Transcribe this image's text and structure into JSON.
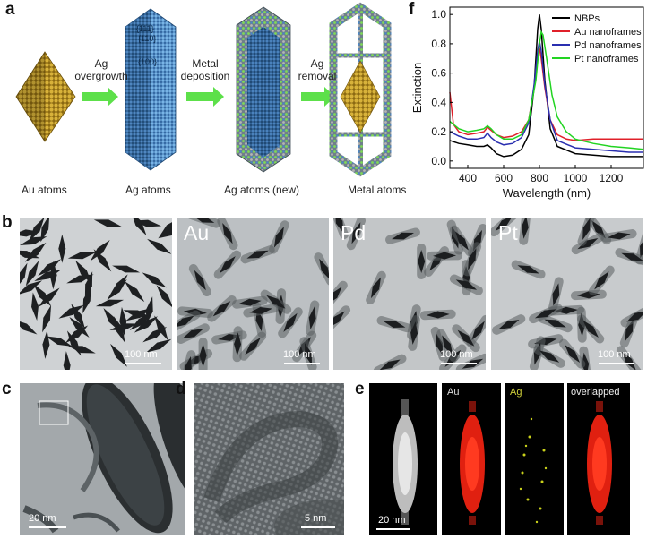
{
  "panels": {
    "a": "a",
    "b": "b",
    "c": "c",
    "d": "d",
    "e": "e",
    "f": "f"
  },
  "panel_a": {
    "steps": [
      "Ag overgrowth",
      "Metal deposition",
      "Ag removal"
    ],
    "facets": [
      "{111}",
      "{110}",
      "{100}"
    ],
    "legend": [
      "Au atoms",
      "Ag atoms",
      "Ag atoms (new)",
      "Metal atoms"
    ],
    "colors": {
      "au": "#c9a227",
      "ag": "#4a86c8",
      "ag_new": "#7ed957",
      "metal": "#9a9a9a",
      "arrow": "#5de04a"
    }
  },
  "panel_b": {
    "tiles": [
      "",
      "Au",
      "Pd",
      "Pt"
    ],
    "scale": "100 nm"
  },
  "panel_c": {
    "scale": "20 nm"
  },
  "panel_d": {
    "scale": "5 nm"
  },
  "panel_e": {
    "labels": [
      "",
      "Au",
      "Ag",
      "overlapped"
    ],
    "scale": "20 nm"
  },
  "chart_data": {
    "type": "line",
    "xlabel": "Wavelength (nm)",
    "ylabel": "Extinction",
    "xlim": [
      300,
      1380
    ],
    "ylim": [
      -0.05,
      1.05
    ],
    "xticks": [
      400,
      600,
      800,
      1000,
      1200
    ],
    "yticks": [
      0.0,
      0.2,
      0.4,
      0.6,
      0.8,
      1.0
    ],
    "legend_position": "top-right",
    "series": [
      {
        "name": "NBPs",
        "color": "#000000",
        "x": [
          300,
          350,
          400,
          450,
          490,
          510,
          530,
          560,
          600,
          650,
          700,
          740,
          770,
          790,
          800,
          810,
          830,
          860,
          900,
          1000,
          1100,
          1200,
          1300,
          1380
        ],
        "y": [
          0.14,
          0.12,
          0.11,
          0.1,
          0.1,
          0.11,
          0.09,
          0.05,
          0.03,
          0.04,
          0.08,
          0.18,
          0.5,
          0.9,
          1.0,
          0.9,
          0.55,
          0.22,
          0.1,
          0.05,
          0.04,
          0.03,
          0.03,
          0.03
        ]
      },
      {
        "name": "Au nanoframes",
        "color": "#e0202a",
        "x": [
          300,
          320,
          350,
          400,
          450,
          490,
          510,
          530,
          560,
          600,
          650,
          700,
          740,
          770,
          790,
          800,
          810,
          830,
          860,
          900,
          950,
          1000,
          1100,
          1200,
          1300,
          1380
        ],
        "y": [
          0.47,
          0.25,
          0.2,
          0.18,
          0.19,
          0.2,
          0.23,
          0.21,
          0.18,
          0.16,
          0.17,
          0.2,
          0.28,
          0.5,
          0.7,
          0.77,
          0.7,
          0.5,
          0.28,
          0.18,
          0.15,
          0.14,
          0.15,
          0.15,
          0.15,
          0.15
        ]
      },
      {
        "name": "Pd nanoframes",
        "color": "#2a2fb0",
        "x": [
          300,
          350,
          400,
          450,
          490,
          510,
          530,
          560,
          600,
          650,
          700,
          740,
          770,
          790,
          800,
          810,
          830,
          860,
          900,
          1000,
          1100,
          1200,
          1300,
          1380
        ],
        "y": [
          0.2,
          0.17,
          0.15,
          0.15,
          0.16,
          0.19,
          0.16,
          0.13,
          0.11,
          0.12,
          0.16,
          0.26,
          0.52,
          0.75,
          0.82,
          0.75,
          0.52,
          0.28,
          0.14,
          0.09,
          0.08,
          0.07,
          0.06,
          0.06
        ]
      },
      {
        "name": "Pt nanoframes",
        "color": "#22d422",
        "x": [
          300,
          350,
          400,
          450,
          490,
          510,
          530,
          560,
          600,
          650,
          700,
          740,
          780,
          800,
          810,
          820,
          840,
          870,
          900,
          950,
          1000,
          1100,
          1200,
          1300,
          1380
        ],
        "y": [
          0.27,
          0.22,
          0.2,
          0.21,
          0.22,
          0.24,
          0.22,
          0.18,
          0.15,
          0.15,
          0.18,
          0.28,
          0.55,
          0.8,
          0.88,
          0.86,
          0.7,
          0.45,
          0.3,
          0.2,
          0.15,
          0.12,
          0.1,
          0.09,
          0.08
        ]
      }
    ]
  }
}
